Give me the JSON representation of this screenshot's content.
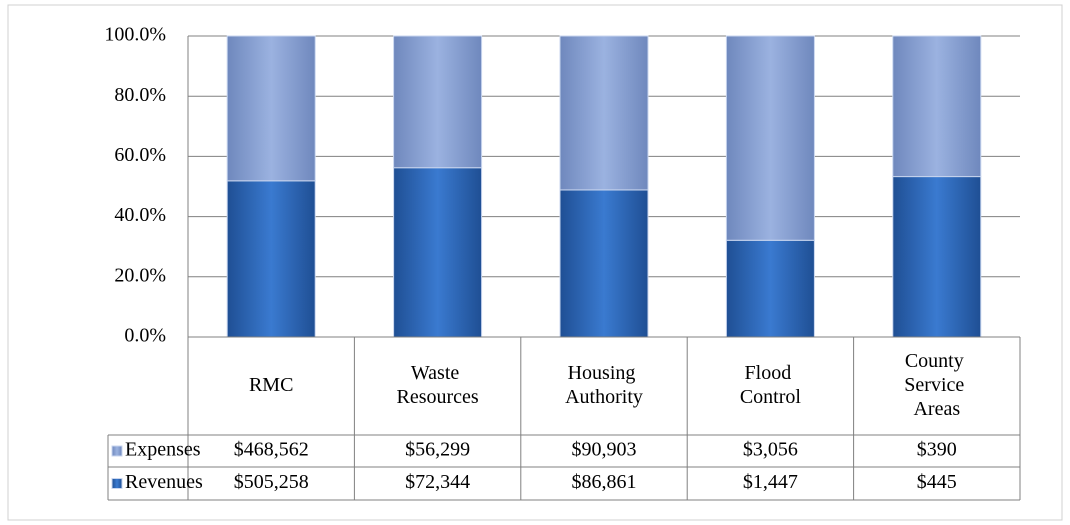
{
  "chart_data": {
    "type": "percent_stacked_bar",
    "categories": [
      "RMC",
      "Waste Resources",
      "Housing Authority",
      "Flood Control",
      "County Service Areas"
    ],
    "series": [
      {
        "name": "Expenses",
        "color": "#8ea6d6",
        "values": [
          468562,
          56299,
          90903,
          3056,
          390
        ],
        "value_labels": [
          "$468,562",
          "$56,299",
          "$90,903",
          "$3,056",
          "$390"
        ]
      },
      {
        "name": "Revenues",
        "color": "#2e6ec2",
        "values": [
          505258,
          72344,
          86861,
          1447,
          445
        ],
        "value_labels": [
          "$505,258",
          "$72,344",
          "$86,861",
          "$1,447",
          "$445"
        ]
      }
    ],
    "ylim": [
      0,
      100
    ],
    "yticks": [
      {
        "value": 0,
        "label": "0.0%"
      },
      {
        "value": 20,
        "label": "20.0%"
      },
      {
        "value": 40,
        "label": "40.0%"
      },
      {
        "value": 60,
        "label": "60.0%"
      },
      {
        "value": 80,
        "label": "80.0%"
      },
      {
        "value": 100,
        "label": "100.0%"
      }
    ],
    "grid": true,
    "data_table": true
  }
}
